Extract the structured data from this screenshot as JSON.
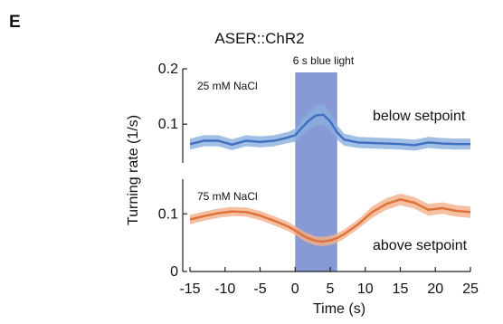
{
  "panel_label": "E",
  "chart_data": {
    "type": "line",
    "title": "ASER::ChR2",
    "xlabel": "Time (s)",
    "ylabel": "Turning rate (1/s)",
    "xlim": [
      -15,
      25
    ],
    "x_ticks": [
      "-15",
      "-10",
      "-5",
      "0",
      "5",
      "10",
      "15",
      "20",
      "25"
    ],
    "stimulus": {
      "label": "6 s blue light",
      "start": 0,
      "end": 6,
      "color": "#7b8fd0"
    },
    "grid": false,
    "panels": [
      {
        "condition_label": "25 mM NaCl",
        "annotation": "below setpoint",
        "color": "#3f6fc0",
        "band_color": "#8aaede",
        "ylim": [
          0.03,
          0.2
        ],
        "y_ticks": [
          "0.2",
          "0.1"
        ],
        "x": [
          -15,
          -13,
          -11,
          -9,
          -7,
          -5,
          -3,
          -1,
          0,
          1,
          2,
          3,
          4,
          5,
          6,
          7,
          9,
          11,
          13,
          15,
          17,
          19,
          21,
          23,
          25
        ],
        "y": [
          0.064,
          0.07,
          0.07,
          0.063,
          0.07,
          0.068,
          0.07,
          0.076,
          0.08,
          0.094,
          0.107,
          0.116,
          0.117,
          0.105,
          0.085,
          0.072,
          0.067,
          0.066,
          0.065,
          0.064,
          0.062,
          0.067,
          0.065,
          0.064,
          0.064
        ],
        "err": [
          0.01,
          0.01,
          0.01,
          0.01,
          0.01,
          0.01,
          0.01,
          0.01,
          0.012,
          0.014,
          0.016,
          0.018,
          0.018,
          0.016,
          0.013,
          0.011,
          0.01,
          0.01,
          0.01,
          0.01,
          0.01,
          0.01,
          0.01,
          0.01,
          0.01
        ]
      },
      {
        "condition_label": "75 mM NaCl",
        "annotation": "above setpoint",
        "color": "#e0703a",
        "band_color": "#f2b08a",
        "ylim": [
          0,
          0.16
        ],
        "y_ticks": [
          "0.1",
          "0"
        ],
        "x": [
          -15,
          -13,
          -11,
          -9,
          -7,
          -5,
          -3,
          -1,
          0,
          1,
          2,
          3,
          4,
          5,
          6,
          7,
          9,
          11,
          13,
          15,
          17,
          19,
          21,
          23,
          25
        ],
        "y": [
          0.09,
          0.096,
          0.101,
          0.104,
          0.103,
          0.097,
          0.088,
          0.078,
          0.071,
          0.063,
          0.057,
          0.053,
          0.052,
          0.054,
          0.058,
          0.065,
          0.082,
          0.103,
          0.117,
          0.125,
          0.119,
          0.107,
          0.11,
          0.105,
          0.103
        ],
        "err": [
          0.008,
          0.008,
          0.008,
          0.008,
          0.008,
          0.008,
          0.008,
          0.008,
          0.008,
          0.008,
          0.008,
          0.008,
          0.008,
          0.008,
          0.008,
          0.008,
          0.008,
          0.01,
          0.01,
          0.01,
          0.01,
          0.01,
          0.01,
          0.01,
          0.01
        ]
      }
    ]
  }
}
